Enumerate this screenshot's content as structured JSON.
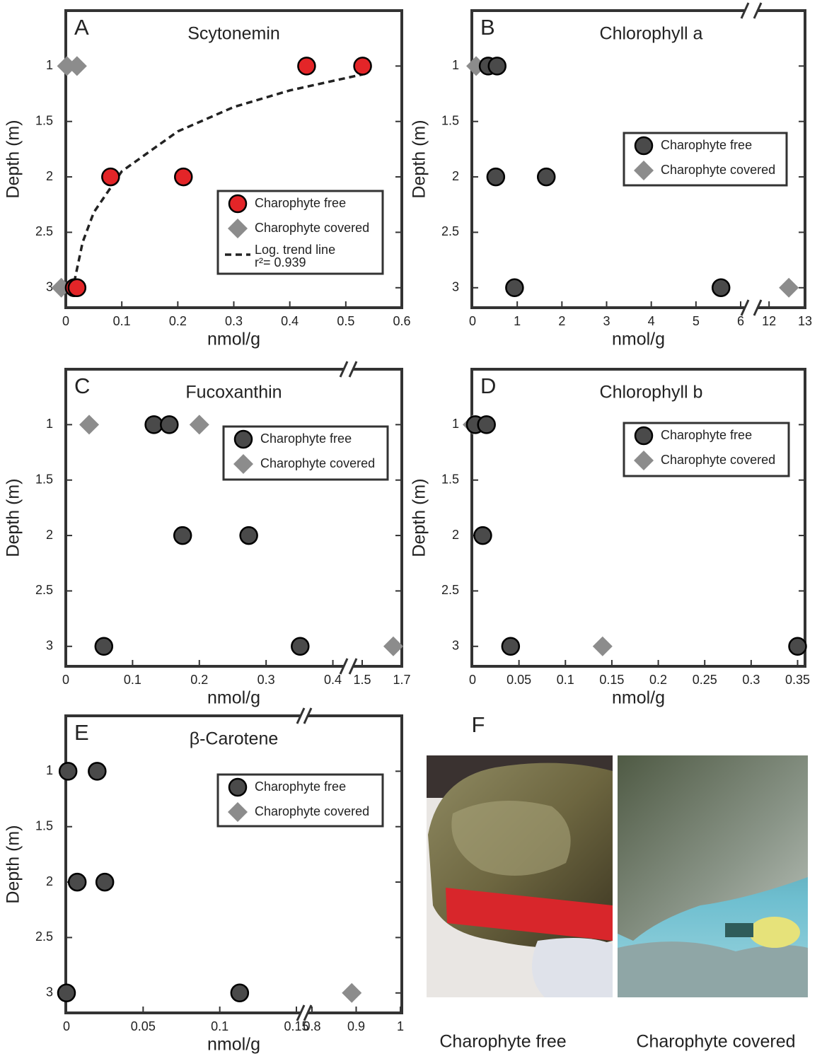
{
  "chart_data": [
    {
      "type": "scatter",
      "label": "A",
      "title": "Scytonemin",
      "xlabel": "nmol/g",
      "ylabel": "Depth (m)",
      "ylim": [
        0.5,
        3.18
      ],
      "y_inverted": true,
      "yticks": [
        1,
        1.5,
        2,
        2.5,
        3
      ],
      "x_segments": [
        {
          "xlim": [
            0,
            0.6
          ],
          "xticks": [
            0,
            0.1,
            0.2,
            0.3,
            0.4,
            0.5,
            0.6
          ]
        }
      ],
      "series": [
        {
          "name": "Charophyte free",
          "color": "#e32528",
          "marker": "circle",
          "x": [
            0.43,
            0.53,
            0.08,
            0.21,
            0.015,
            0.02
          ],
          "y": [
            1,
            1,
            2,
            2,
            3,
            3
          ]
        },
        {
          "name": "Charophyte covered",
          "color": "#8c8c8c",
          "marker": "diamond",
          "x": [
            0.002,
            0.02,
            -0.008
          ],
          "y": [
            1,
            1,
            3
          ]
        }
      ],
      "trend": {
        "name": "Log. trend line",
        "r2_text": "r²= 0.939",
        "color": "#222222",
        "x": [
          0.015,
          0.03,
          0.05,
          0.1,
          0.2,
          0.3,
          0.4,
          0.535
        ],
        "y": [
          2.95,
          2.59,
          2.32,
          1.95,
          1.59,
          1.37,
          1.22,
          1.07
        ]
      }
    },
    {
      "type": "scatter",
      "label": "B",
      "title": "Chlorophyll a",
      "xlabel": "nmol/g",
      "ylabel": "Depth (m)",
      "ylim": [
        0.5,
        3.18
      ],
      "y_inverted": true,
      "yticks": [
        1,
        1.5,
        2,
        2.5,
        3
      ],
      "x_segments": [
        {
          "xlim": [
            0,
            6
          ],
          "xticks": [
            0,
            1,
            2,
            3,
            4,
            5,
            6
          ]
        },
        {
          "xlim": [
            11.8,
            13
          ],
          "xticks": [
            12,
            13
          ]
        }
      ],
      "series": [
        {
          "name": "Charophyte free",
          "color": "#4a4a4a",
          "marker": "circle",
          "x": [
            0.35,
            0.55,
            0.52,
            1.65,
            0.94,
            5.56
          ],
          "y": [
            1,
            1,
            2,
            2,
            3,
            3
          ]
        },
        {
          "name": "Charophyte covered",
          "color": "#8c8c8c",
          "marker": "diamond",
          "x": [
            0.08,
            12.55
          ],
          "y": [
            1,
            3
          ]
        }
      ]
    },
    {
      "type": "scatter",
      "label": "C",
      "title": "Fucoxanthin",
      "xlabel": "nmol/g",
      "ylabel": "Depth (m)",
      "ylim": [
        0.5,
        3.18
      ],
      "y_inverted": true,
      "yticks": [
        1,
        1.5,
        2,
        2.5,
        3
      ],
      "x_segments": [
        {
          "xlim": [
            0,
            0.41
          ],
          "xticks": [
            0,
            0.1,
            0.2,
            0.3,
            0.4
          ]
        },
        {
          "xlim": [
            1.475,
            1.7
          ],
          "xticks": [
            1.5,
            1.7
          ]
        }
      ],
      "series": [
        {
          "name": "Charophyte free",
          "color": "#4a4a4a",
          "marker": "circle",
          "x": [
            0.132,
            0.155,
            0.175,
            0.274,
            0.057,
            0.351
          ],
          "y": [
            1,
            1,
            2,
            2,
            3,
            3
          ]
        },
        {
          "name": "Charophyte covered",
          "color": "#8c8c8c",
          "marker": "diamond",
          "x": [
            0.035,
            0.2,
            1.657
          ],
          "y": [
            1,
            1,
            3
          ]
        }
      ]
    },
    {
      "type": "scatter",
      "label": "D",
      "title": "Chlorophyll b",
      "xlabel": "nmol/g",
      "ylabel": "Depth (m)",
      "ylim": [
        0.5,
        3.18
      ],
      "y_inverted": true,
      "yticks": [
        1,
        1.5,
        2,
        2.5,
        3
      ],
      "x_segments": [
        {
          "xlim": [
            0,
            0.358
          ],
          "xticks": [
            0,
            0.05,
            0.1,
            0.15,
            0.2,
            0.25,
            0.3,
            0.35
          ]
        }
      ],
      "series": [
        {
          "name": "Charophyte free",
          "color": "#4a4a4a",
          "marker": "circle",
          "x": [
            0.003,
            0.015,
            0.011,
            0.041,
            0.35
          ],
          "y": [
            1,
            1,
            2,
            3,
            3
          ]
        },
        {
          "name": "Charophyte covered",
          "color": "#8c8c8c",
          "marker": "diamond",
          "x": [
            0.0,
            0.14
          ],
          "y": [
            1,
            3
          ]
        }
      ]
    },
    {
      "type": "scatter",
      "label": "E",
      "title": "β-Carotene",
      "xlabel": "nmol/g",
      "ylabel": "Depth (m)",
      "ylim": [
        0.5,
        3.18
      ],
      "y_inverted": true,
      "yticks": [
        1,
        1.5,
        2,
        2.5,
        3
      ],
      "x_segments": [
        {
          "xlim": [
            0,
            0.15
          ],
          "xticks": [
            0,
            0.05,
            0.1,
            0.15
          ]
        },
        {
          "xlim": [
            0.8,
            1
          ],
          "xticks": [
            0.8,
            0.9,
            1
          ]
        }
      ],
      "series": [
        {
          "name": "Charophyte free",
          "color": "#4a4a4a",
          "marker": "circle",
          "x": [
            0.001,
            0.02,
            0.007,
            0.025,
            0,
            0.113
          ],
          "y": [
            1,
            1,
            2,
            2,
            3,
            3
          ]
        },
        {
          "name": "Charophyte covered",
          "color": "#8c8c8c",
          "marker": "diamond",
          "x": [
            0.89
          ],
          "y": [
            3
          ]
        }
      ]
    }
  ],
  "photo_panel": {
    "label": "F",
    "captions": [
      "Charophyte free",
      "Charophyte covered"
    ]
  }
}
